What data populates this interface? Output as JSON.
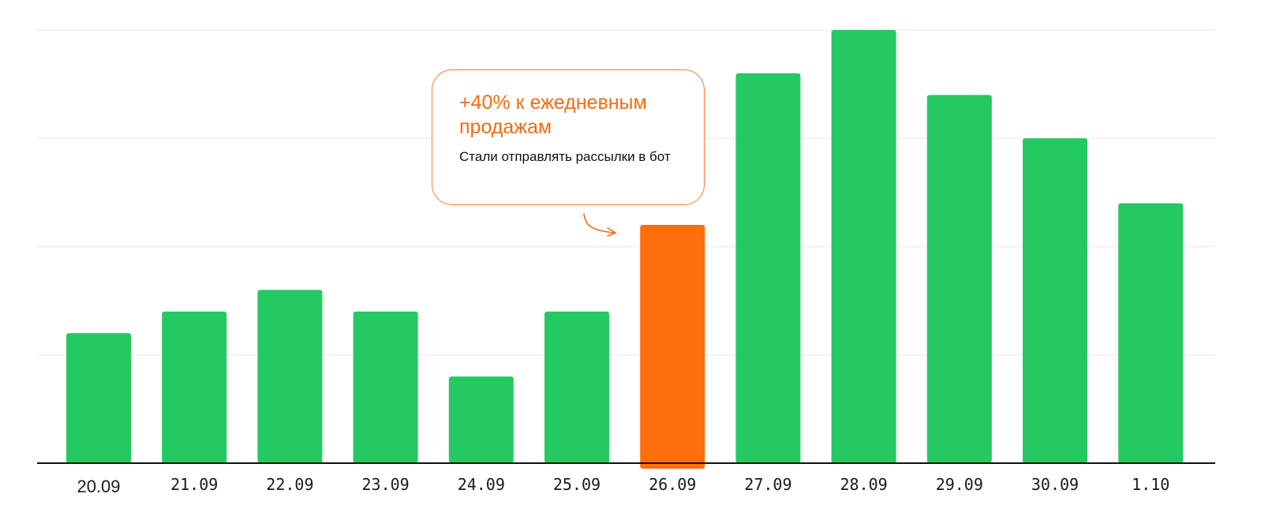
{
  "chart_data": {
    "type": "bar",
    "categories": [
      "20.09",
      "21.09",
      "22.09",
      "23.09",
      "24.09",
      "25.09",
      "26.09",
      "27.09",
      "28.09",
      "29.09",
      "30.09",
      "1.10"
    ],
    "values": [
      12,
      14,
      16,
      14,
      8,
      14,
      22,
      36,
      40,
      34,
      30,
      24
    ],
    "ylim": [
      0,
      40
    ],
    "grid": true,
    "highlight_index": 6,
    "colors": {
      "bar": "#25c962",
      "highlight": "#ff6e0c",
      "grid": "#ececec",
      "axis": "#111111"
    },
    "annotation": {
      "category": "26.09",
      "title": "+40% к ежедневным продажам",
      "text": "Стали отправлять рассылки в бот",
      "color": "#f46b12"
    }
  }
}
